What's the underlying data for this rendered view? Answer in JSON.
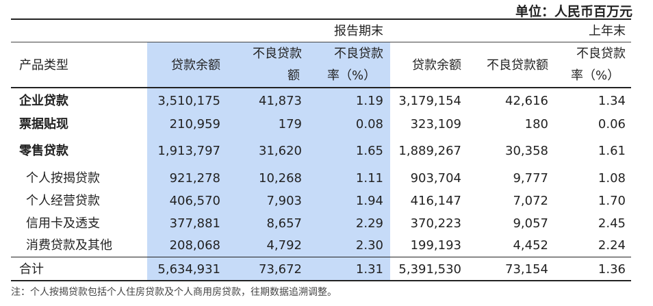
{
  "unit_label": "单位：人民币百万元",
  "headers": {
    "group_current": "报告期末",
    "group_prev": "上年末",
    "product_type": "产品类型",
    "cur_loan": "贷款余额",
    "cur_npl_line1": "不良贷款",
    "cur_npl_line2": "额",
    "cur_rate_line1": "不良贷款",
    "cur_rate_line2": "率（%）",
    "prev_loan": "贷款余额",
    "prev_npl": "不良贷款额",
    "prev_rate_line1": "不良贷款",
    "prev_rate_line2": "率（%）"
  },
  "rows": [
    {
      "label": "企业贷款",
      "c1": "3,510,175",
      "c2": "41,873",
      "c3": "1.19",
      "p1": "3,179,154",
      "p2": "42,616",
      "p3": "1.34"
    },
    {
      "label": "票据贴现",
      "c1": "210,959",
      "c2": "179",
      "c3": "0.08",
      "p1": "323,109",
      "p2": "180",
      "p3": "0.06"
    },
    {
      "label": "零售贷款",
      "c1": "1,913,797",
      "c2": "31,620",
      "c3": "1.65",
      "p1": "1,889,267",
      "p2": "30,358",
      "p3": "1.61"
    },
    {
      "label": "个人按揭贷款",
      "c1": "921,278",
      "c2": "10,268",
      "c3": "1.11",
      "p1": "903,704",
      "p2": "9,777",
      "p3": "1.08"
    },
    {
      "label": "个人经营贷款",
      "c1": "406,570",
      "c2": "7,903",
      "c3": "1.94",
      "p1": "416,147",
      "p2": "7,072",
      "p3": "1.70"
    },
    {
      "label": "信用卡及透支",
      "c1": "377,881",
      "c2": "8,657",
      "c3": "2.29",
      "p1": "370,223",
      "p2": "9,057",
      "p3": "2.45"
    },
    {
      "label": "消费贷款及其他",
      "c1": "208,068",
      "c2": "4,792",
      "c3": "2.30",
      "p1": "199,193",
      "p2": "4,452",
      "p3": "2.24"
    },
    {
      "label": "合计",
      "c1": "5,634,931",
      "c2": "73,672",
      "c3": "1.31",
      "p1": "5,391,530",
      "p2": "73,154",
      "p3": "1.36"
    }
  ],
  "note": "注：个人按揭贷款包括个人住房贷款及个人商用房贷款，往期数据追溯调整。"
}
